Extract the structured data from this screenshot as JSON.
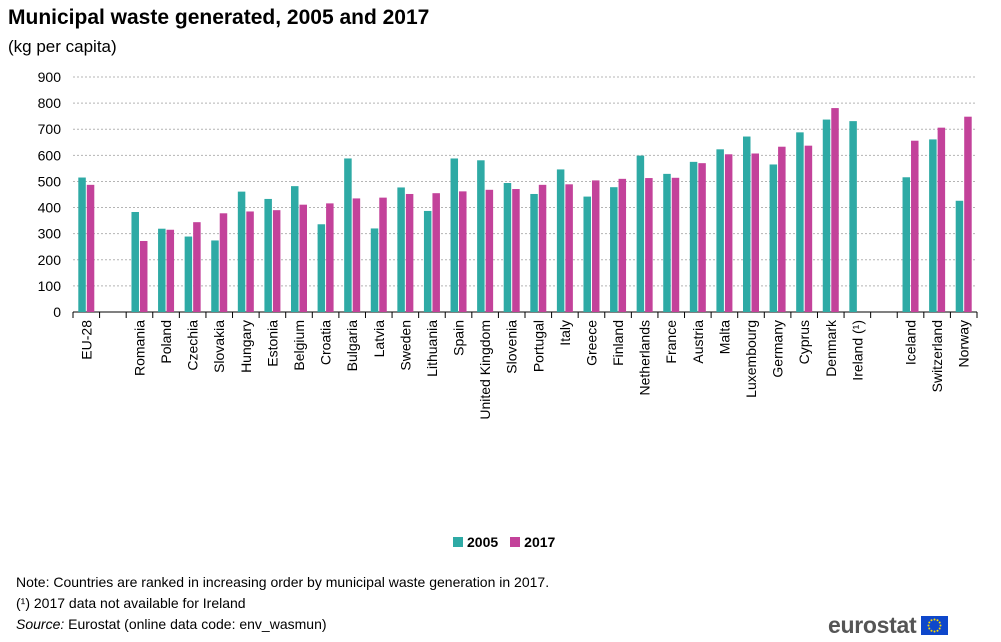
{
  "header": {
    "title": "Municipal waste generated, 2005 and 2017",
    "subtitle": "(kg per capita)"
  },
  "legend": {
    "items": [
      {
        "label": "2005",
        "color": "#2eaaa5"
      },
      {
        "label": "2017",
        "color": "#c3429a"
      }
    ]
  },
  "notes": {
    "note": "Note: Countries are ranked in increasing order by municipal waste generation in 2017.",
    "footnote": "(¹) 2017 data not available for Ireland",
    "source_label": "Source:",
    "source_text": " Eurostat (online data code: env_wasmun)"
  },
  "branding": {
    "logo_text": "eurostat",
    "flag_icon": "eu-flag-icon"
  },
  "chart_data": {
    "type": "bar",
    "title": "Municipal waste generated, 2005 and 2017",
    "subtitle": "(kg per capita)",
    "ylim": [
      0,
      900
    ],
    "yticks": [
      0,
      100,
      200,
      300,
      400,
      500,
      600,
      700,
      800,
      900
    ],
    "grid": true,
    "legend_position": "bottom-center",
    "category_groups": [
      [
        "EU-28"
      ],
      [
        "Romania",
        "Poland",
        "Czechia",
        "Slovakia",
        "Hungary",
        "Estonia",
        "Belgium",
        "Croatia",
        "Bulgaria",
        "Latvia",
        "Sweden",
        "Lithuania",
        "Spain",
        "United Kingdom",
        "Slovenia",
        "Portugal",
        "Italy",
        "Greece",
        "Finland",
        "Netherlands",
        "France",
        "Austria",
        "Malta",
        "Luxembourg",
        "Germany",
        "Cyprus",
        "Denmark",
        "Ireland (¹)"
      ],
      [
        "Iceland",
        "Switzerland",
        "Norway"
      ]
    ],
    "categories": [
      "EU-28",
      "Romania",
      "Poland",
      "Czechia",
      "Slovakia",
      "Hungary",
      "Estonia",
      "Belgium",
      "Croatia",
      "Bulgaria",
      "Latvia",
      "Sweden",
      "Lithuania",
      "Spain",
      "United Kingdom",
      "Slovenia",
      "Portugal",
      "Italy",
      "Greece",
      "Finland",
      "Netherlands",
      "France",
      "Austria",
      "Malta",
      "Luxembourg",
      "Germany",
      "Cyprus",
      "Denmark",
      "Ireland (¹)",
      "Iceland",
      "Switzerland",
      "Norway"
    ],
    "series": [
      {
        "name": "2005",
        "color": "#2eaaa5",
        "values": [
          515,
          383,
          319,
          289,
          274,
          461,
          433,
          482,
          336,
          588,
          320,
          477,
          387,
          588,
          581,
          494,
          452,
          546,
          442,
          478,
          599,
          529,
          575,
          623,
          672,
          565,
          688,
          737,
          731,
          516,
          661,
          426
        ]
      },
      {
        "name": "2017",
        "color": "#c3429a",
        "values": [
          487,
          272,
          315,
          344,
          378,
          385,
          390,
          411,
          416,
          435,
          438,
          452,
          455,
          462,
          468,
          471,
          487,
          489,
          504,
          510,
          513,
          514,
          570,
          604,
          607,
          633,
          637,
          781,
          null,
          656,
          706,
          748
        ]
      }
    ]
  }
}
